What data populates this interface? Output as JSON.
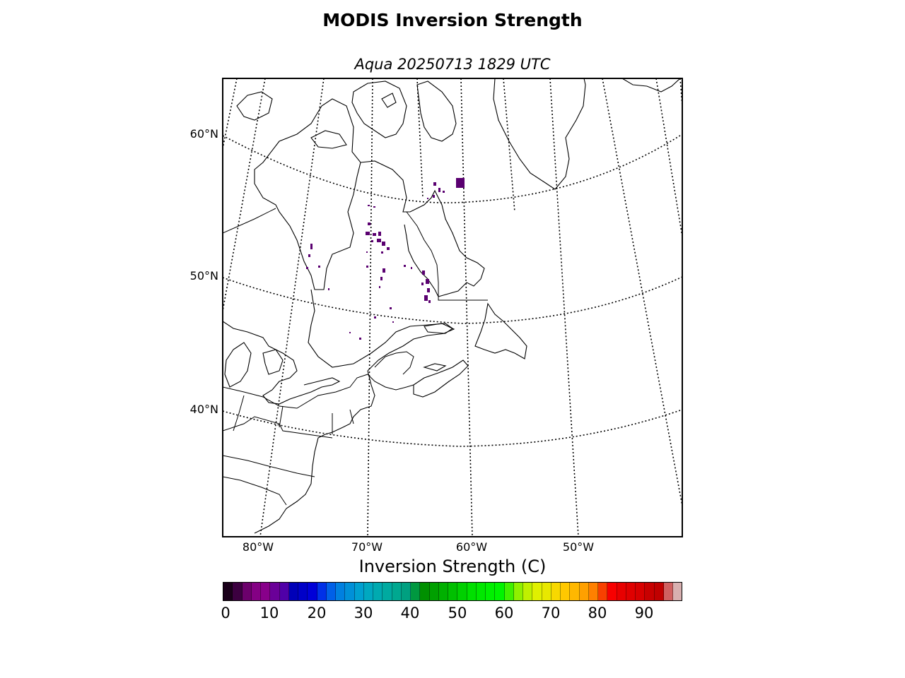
{
  "title": "MODIS Inversion Strength",
  "subtitle": "Aqua 20250713 1829 UTC",
  "map": {
    "projection": "conic",
    "latitude_labels": [
      "60°N",
      "50°N",
      "40°N"
    ],
    "longitude_labels": [
      "80°W",
      "70°W",
      "60°W",
      "50°W"
    ],
    "graticule_style": "dotted",
    "background_color": "#ffffff",
    "coastline_color": "#000000",
    "data_color": "#5a0070"
  },
  "colorbar": {
    "label": "Inversion Strength (C)",
    "ticks": [
      "0",
      "10",
      "20",
      "30",
      "40",
      "50",
      "60",
      "70",
      "80",
      "90"
    ],
    "min": 0,
    "max": 98,
    "colors": [
      "#1a001a",
      "#3c0040",
      "#6c006c",
      "#840084",
      "#88008a",
      "#6a0098",
      "#5000a8",
      "#0000b8",
      "#0000c8",
      "#0000d8",
      "#0030e8",
      "#0060e8",
      "#0080e0",
      "#0090d8",
      "#00a0d0",
      "#00a8c0",
      "#00aab0",
      "#00aaa0",
      "#00a890",
      "#00a080",
      "#009840",
      "#009000",
      "#00a000",
      "#00b000",
      "#00c000",
      "#00d000",
      "#00e000",
      "#00e800",
      "#00f000",
      "#00f400",
      "#40f000",
      "#90f000",
      "#c0f000",
      "#e0f000",
      "#e8e800",
      "#f8d800",
      "#ffc800",
      "#ffb800",
      "#ffa000",
      "#ff8000",
      "#f84000",
      "#f80000",
      "#e80000",
      "#e00000",
      "#d80000",
      "#c80000",
      "#c00000",
      "#d06060",
      "#d8b0b0"
    ]
  }
}
